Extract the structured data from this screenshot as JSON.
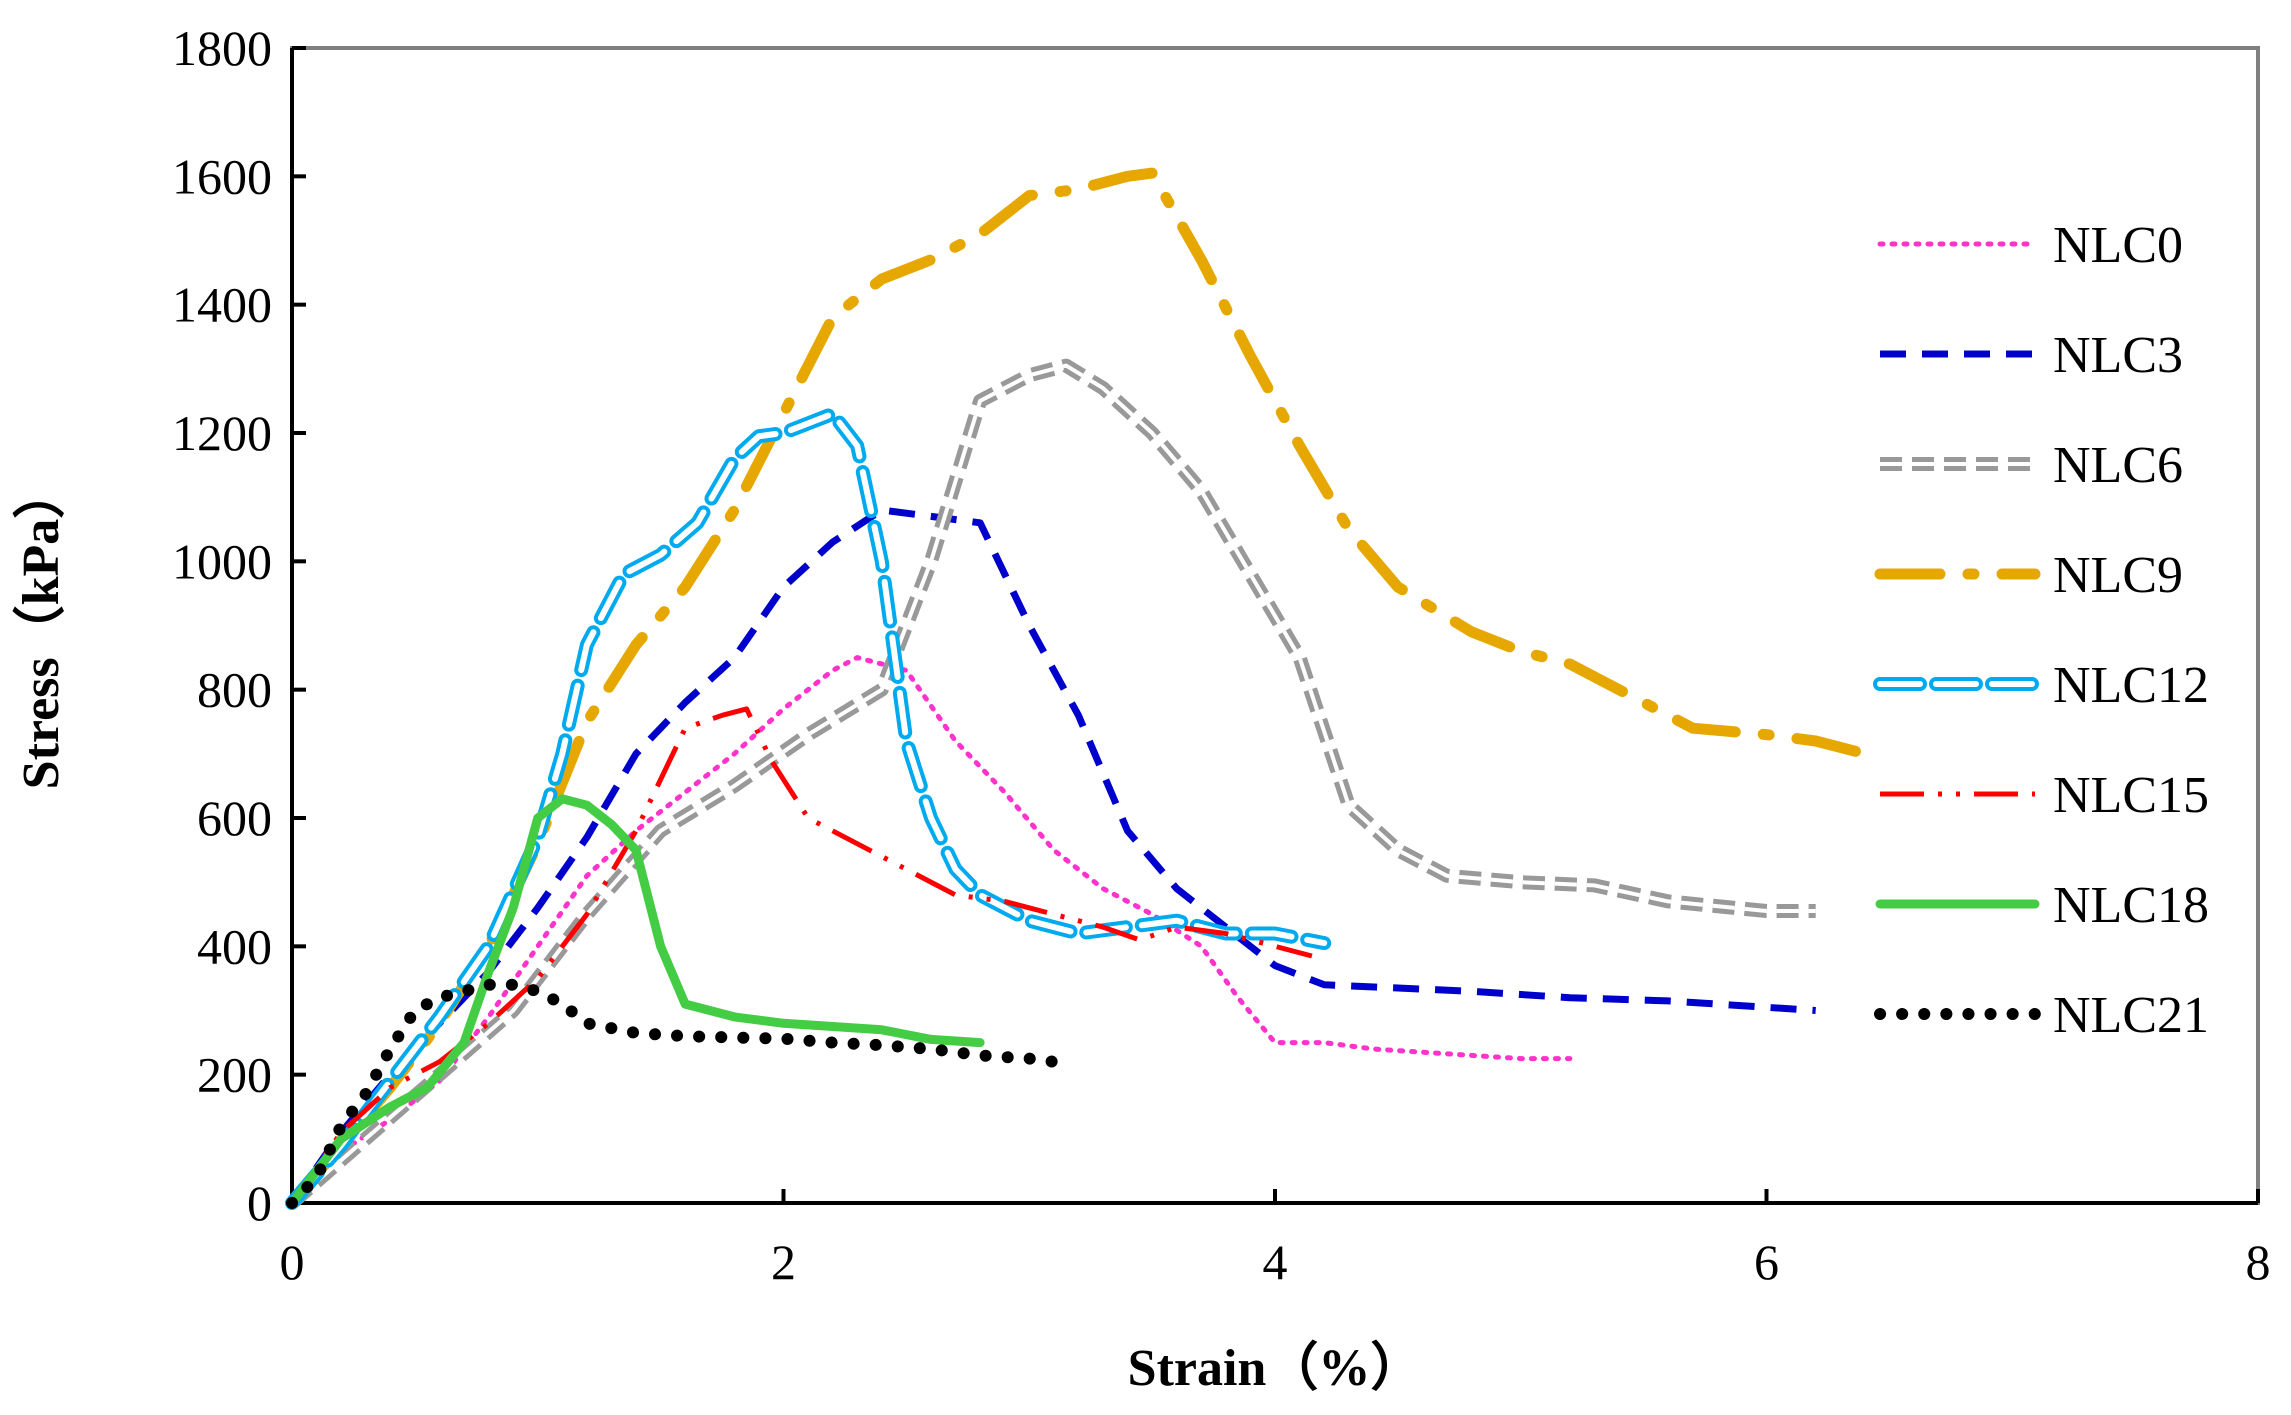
{
  "chart_data": {
    "type": "line",
    "xlabel": "Strain（%）",
    "ylabel": "Stress（kPa）",
    "xlim": [
      0,
      8
    ],
    "ylim": [
      0,
      1800
    ],
    "xticks": [
      0,
      2,
      4,
      6,
      8
    ],
    "yticks": [
      0,
      200,
      400,
      600,
      800,
      1000,
      1200,
      1400,
      1600,
      1800
    ],
    "grid": false,
    "legend_position": "right",
    "series": [
      {
        "name": "NLC0",
        "color": "#ff33cc",
        "style": "dotted",
        "x": [
          0,
          0.2,
          0.4,
          0.6,
          0.8,
          1.0,
          1.2,
          1.4,
          1.6,
          1.8,
          2.0,
          2.2,
          2.3,
          2.5,
          2.7,
          2.9,
          3.1,
          3.3,
          3.5,
          3.7,
          3.85,
          4.0,
          4.2,
          4.4,
          4.6,
          4.8,
          5.0,
          5.2
        ],
        "y": [
          0,
          80,
          130,
          190,
          290,
          400,
          510,
          580,
          640,
          700,
          770,
          830,
          850,
          830,
          720,
          640,
          550,
          490,
          450,
          400,
          320,
          250,
          250,
          240,
          235,
          230,
          225,
          225
        ]
      },
      {
        "name": "NLC3",
        "color": "#0000cc",
        "style": "dashed",
        "x": [
          0,
          0.2,
          0.4,
          0.6,
          0.8,
          1.0,
          1.2,
          1.4,
          1.6,
          1.8,
          2.0,
          2.2,
          2.4,
          2.6,
          2.8,
          3.0,
          3.2,
          3.4,
          3.6,
          3.8,
          4.0,
          4.2,
          4.5,
          4.8,
          5.2,
          5.6,
          6.0,
          6.2
        ],
        "y": [
          0,
          110,
          200,
          280,
          360,
          460,
          570,
          700,
          780,
          850,
          960,
          1030,
          1080,
          1070,
          1060,
          900,
          760,
          580,
          490,
          430,
          370,
          340,
          335,
          330,
          320,
          315,
          305,
          300
        ]
      },
      {
        "name": "NLC6",
        "color": "#999999",
        "style": "double-dashed",
        "x": [
          0,
          0.3,
          0.6,
          0.9,
          1.2,
          1.5,
          1.8,
          2.1,
          2.4,
          2.6,
          2.8,
          3.0,
          3.15,
          3.3,
          3.5,
          3.7,
          3.9,
          4.1,
          4.3,
          4.5,
          4.7,
          5.0,
          5.3,
          5.6,
          6.0,
          6.2
        ],
        "y": [
          0,
          100,
          200,
          300,
          450,
          580,
          650,
          730,
          800,
          1000,
          1250,
          1290,
          1305,
          1270,
          1200,
          1110,
          980,
          850,
          620,
          550,
          510,
          500,
          495,
          470,
          455,
          455
        ]
      },
      {
        "name": "NLC9",
        "color": "#e6a800",
        "style": "dash-dot",
        "x": [
          0,
          0.2,
          0.4,
          0.6,
          0.8,
          1.0,
          1.2,
          1.4,
          1.6,
          1.8,
          2.0,
          2.2,
          2.4,
          2.6,
          2.8,
          3.0,
          3.2,
          3.4,
          3.5,
          3.7,
          3.9,
          4.1,
          4.3,
          4.5,
          4.8,
          5.0,
          5.2,
          5.4,
          5.7,
          6.0,
          6.2,
          6.4
        ],
        "y": [
          0,
          90,
          180,
          280,
          400,
          560,
          750,
          870,
          960,
          1080,
          1230,
          1380,
          1440,
          1470,
          1510,
          1570,
          1580,
          1600,
          1605,
          1470,
          1320,
          1180,
          1050,
          960,
          890,
          860,
          840,
          800,
          740,
          730,
          720,
          700
        ]
      },
      {
        "name": "NLC12",
        "color": "#00aaee",
        "style": "dashed-outline",
        "x": [
          0,
          0.2,
          0.4,
          0.6,
          0.8,
          1.0,
          1.1,
          1.2,
          1.35,
          1.5,
          1.65,
          1.8,
          1.9,
          2.0,
          2.1,
          2.2,
          2.3,
          2.4,
          2.5,
          2.6,
          2.7,
          2.8,
          3.0,
          3.2,
          3.4,
          3.6,
          3.8,
          4.0,
          4.2
        ],
        "y": [
          0,
          90,
          190,
          290,
          400,
          570,
          700,
          870,
          980,
          1010,
          1060,
          1160,
          1195,
          1200,
          1215,
          1230,
          1180,
          1000,
          720,
          600,
          520,
          480,
          440,
          420,
          430,
          440,
          420,
          420,
          405
        ]
      },
      {
        "name": "NLC15",
        "color": "#ff0000",
        "style": "long-dash-dot-dot",
        "x": [
          0,
          0.2,
          0.4,
          0.6,
          0.8,
          1.0,
          1.2,
          1.4,
          1.6,
          1.75,
          1.85,
          1.95,
          2.1,
          2.3,
          2.5,
          2.7,
          2.9,
          3.1,
          3.3,
          3.45,
          3.6,
          3.8,
          4.0,
          4.15
        ],
        "y": [
          0,
          110,
          180,
          220,
          280,
          350,
          450,
          580,
          740,
          760,
          770,
          690,
          600,
          560,
          520,
          480,
          470,
          450,
          430,
          410,
          430,
          420,
          400,
          385
        ]
      },
      {
        "name": "NLC18",
        "color": "#44cc44",
        "style": "solid",
        "x": [
          0,
          0.2,
          0.4,
          0.55,
          0.7,
          0.8,
          0.9,
          1.0,
          1.1,
          1.2,
          1.3,
          1.4,
          1.5,
          1.6,
          1.8,
          2.0,
          2.2,
          2.4,
          2.6,
          2.8
        ],
        "y": [
          0,
          100,
          150,
          180,
          250,
          360,
          460,
          600,
          630,
          620,
          590,
          550,
          400,
          310,
          290,
          280,
          275,
          270,
          255,
          250
        ]
      },
      {
        "name": "NLC21",
        "color": "#000000",
        "style": "dotted-thick",
        "x": [
          0,
          0.1,
          0.2,
          0.3,
          0.4,
          0.5,
          0.6,
          0.7,
          0.8,
          0.9,
          1.0,
          1.1,
          1.2,
          1.4,
          1.6,
          1.8,
          2.0,
          2.2,
          2.4,
          2.6,
          2.8,
          3.0,
          3.1
        ],
        "y": [
          0,
          40,
          120,
          170,
          240,
          300,
          320,
          330,
          340,
          340,
          330,
          310,
          280,
          265,
          260,
          258,
          256,
          250,
          246,
          240,
          230,
          225,
          220
        ]
      }
    ]
  }
}
